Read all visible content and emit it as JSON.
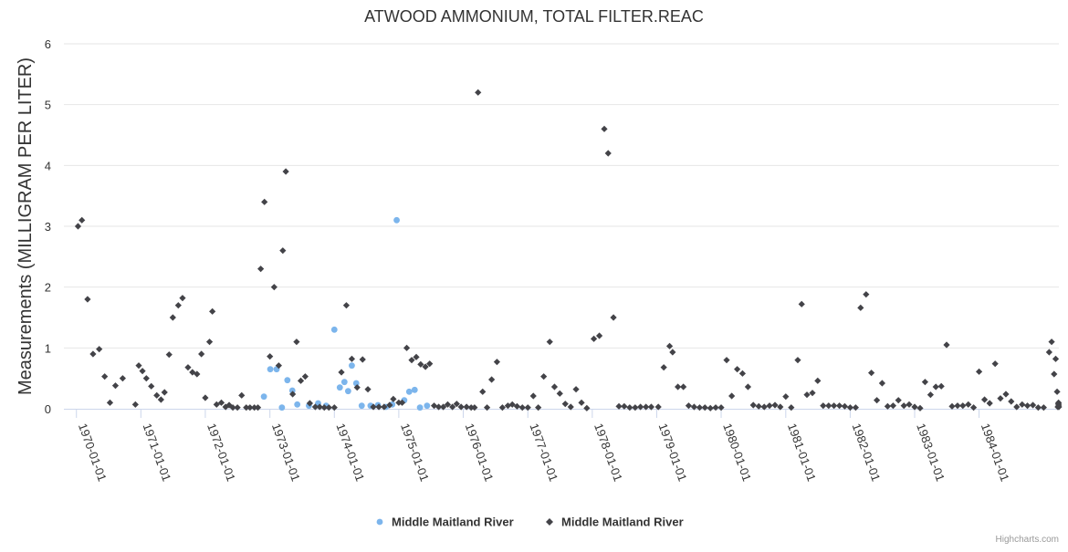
{
  "chart_data": {
    "type": "scatter",
    "title": "ATWOOD AMMONIUM, TOTAL FILTER.REAC",
    "xlabel": "",
    "ylabel": "Measurements (MILLIGRAM PER LITER)",
    "ylim": [
      0,
      6
    ],
    "y_ticks": [
      "0",
      "1",
      "2",
      "3",
      "4",
      "5",
      "6"
    ],
    "x_ticks": [
      "1970-01-01",
      "1971-01-01",
      "1972-01-01",
      "1973-01-01",
      "1974-01-01",
      "1975-01-01",
      "1976-01-01",
      "1977-01-01",
      "1978-01-01",
      "1979-01-01",
      "1980-01-01",
      "1981-01-01",
      "1982-01-01",
      "1983-01-01",
      "1984-01-01"
    ],
    "xlim": [
      "1969-10-22",
      "1985-03-28"
    ],
    "grid": true,
    "legend_position": "bottom-center",
    "credit": "Highcharts.com",
    "series": [
      {
        "name": "Middle Maitland River",
        "marker": "circle",
        "color": "#7cb5ec",
        "points": [
          [
            "1972-11-28",
            0.2
          ],
          [
            "1973-01-03",
            0.65
          ],
          [
            "1973-02-08",
            0.65
          ],
          [
            "1973-03-10",
            0.02
          ],
          [
            "1973-04-10",
            0.47
          ],
          [
            "1973-05-08",
            0.3
          ],
          [
            "1973-06-05",
            0.07
          ],
          [
            "1973-08-10",
            0.05
          ],
          [
            "1973-10-01",
            0.09
          ],
          [
            "1973-11-15",
            0.05
          ],
          [
            "1974-01-01",
            1.3
          ],
          [
            "1974-02-01",
            0.35
          ],
          [
            "1974-02-27",
            0.44
          ],
          [
            "1974-03-20",
            0.29
          ],
          [
            "1974-04-10",
            0.71
          ],
          [
            "1974-05-05",
            0.42
          ],
          [
            "1974-06-05",
            0.05
          ],
          [
            "1974-07-25",
            0.05
          ],
          [
            "1974-09-05",
            0.06
          ],
          [
            "1974-10-20",
            0.03
          ],
          [
            "1974-11-25",
            0.07
          ],
          [
            "1974-12-20",
            3.1
          ],
          [
            "1975-02-01",
            0.14
          ],
          [
            "1975-03-01",
            0.28
          ],
          [
            "1975-04-01",
            0.31
          ],
          [
            "1975-05-01",
            0.02
          ],
          [
            "1975-06-10",
            0.05
          ]
        ]
      },
      {
        "name": "Middle Maitland River",
        "marker": "diamond",
        "color": "#434348",
        "points": [
          [
            "1970-01-10",
            3.0
          ],
          [
            "1970-02-01",
            3.1
          ],
          [
            "1970-03-05",
            1.8
          ],
          [
            "1970-04-05",
            0.9
          ],
          [
            "1970-05-10",
            0.98
          ],
          [
            "1970-06-10",
            0.53
          ],
          [
            "1970-07-10",
            0.1
          ],
          [
            "1970-08-10",
            0.38
          ],
          [
            "1970-09-20",
            0.5
          ],
          [
            "1970-12-01",
            0.07
          ],
          [
            "1970-12-20",
            0.71
          ],
          [
            "1971-01-10",
            0.62
          ],
          [
            "1971-02-01",
            0.5
          ],
          [
            "1971-03-01",
            0.37
          ],
          [
            "1971-04-01",
            0.22
          ],
          [
            "1971-04-25",
            0.15
          ],
          [
            "1971-05-15",
            0.27
          ],
          [
            "1971-06-10",
            0.89
          ],
          [
            "1971-07-01",
            1.5
          ],
          [
            "1971-08-01",
            1.7
          ],
          [
            "1971-08-25",
            1.82
          ],
          [
            "1971-09-25",
            0.68
          ],
          [
            "1971-10-20",
            0.6
          ],
          [
            "1971-11-15",
            0.57
          ],
          [
            "1971-12-10",
            0.9
          ],
          [
            "1972-01-01",
            0.18
          ],
          [
            "1972-01-25",
            1.1
          ],
          [
            "1972-02-10",
            1.6
          ],
          [
            "1972-03-05",
            0.07
          ],
          [
            "1972-04-01",
            0.1
          ],
          [
            "1972-04-25",
            0.03
          ],
          [
            "1972-05-15",
            0.06
          ],
          [
            "1972-06-05",
            0.02
          ],
          [
            "1972-07-01",
            0.02
          ],
          [
            "1972-07-25",
            0.22
          ],
          [
            "1972-08-20",
            0.02
          ],
          [
            "1972-09-10",
            0.02
          ],
          [
            "1972-10-05",
            0.02
          ],
          [
            "1972-10-25",
            0.02
          ],
          [
            "1972-11-10",
            2.3
          ],
          [
            "1972-12-01",
            3.4
          ],
          [
            "1973-01-01",
            0.86
          ],
          [
            "1973-01-25",
            2.0
          ],
          [
            "1973-02-20",
            0.71
          ],
          [
            "1973-03-15",
            2.6
          ],
          [
            "1973-04-01",
            3.9
          ],
          [
            "1973-05-10",
            0.24
          ],
          [
            "1973-06-01",
            1.1
          ],
          [
            "1973-06-25",
            0.46
          ],
          [
            "1973-07-20",
            0.53
          ],
          [
            "1973-08-15",
            0.09
          ],
          [
            "1973-09-15",
            0.03
          ],
          [
            "1973-10-10",
            0.03
          ],
          [
            "1973-11-05",
            0.02
          ],
          [
            "1973-12-01",
            0.02
          ],
          [
            "1974-01-01",
            0.02
          ],
          [
            "1974-02-10",
            0.6
          ],
          [
            "1974-03-10",
            1.7
          ],
          [
            "1974-04-10",
            0.82
          ],
          [
            "1974-05-10",
            0.35
          ],
          [
            "1974-06-10",
            0.81
          ],
          [
            "1974-07-10",
            0.32
          ],
          [
            "1974-08-10",
            0.03
          ],
          [
            "1974-09-10",
            0.03
          ],
          [
            "1974-10-10",
            0.03
          ],
          [
            "1974-11-10",
            0.06
          ],
          [
            "1974-12-01",
            0.16
          ],
          [
            "1975-01-01",
            0.1
          ],
          [
            "1975-01-20",
            0.1
          ],
          [
            "1975-02-15",
            1.0
          ],
          [
            "1975-03-15",
            0.8
          ],
          [
            "1975-04-10",
            0.85
          ],
          [
            "1975-05-05",
            0.73
          ],
          [
            "1975-06-01",
            0.69
          ],
          [
            "1975-06-25",
            0.74
          ],
          [
            "1975-07-20",
            0.05
          ],
          [
            "1975-08-15",
            0.03
          ],
          [
            "1975-09-10",
            0.03
          ],
          [
            "1975-10-05",
            0.07
          ],
          [
            "1975-11-01",
            0.03
          ],
          [
            "1975-11-25",
            0.08
          ],
          [
            "1975-12-20",
            0.03
          ],
          [
            "1976-01-20",
            0.03
          ],
          [
            "1976-02-15",
            0.02
          ],
          [
            "1976-03-05",
            0.02
          ],
          [
            "1976-03-25",
            5.2
          ],
          [
            "1976-04-20",
            0.28
          ],
          [
            "1976-05-15",
            0.02
          ],
          [
            "1976-06-10",
            0.48
          ],
          [
            "1976-07-10",
            0.77
          ],
          [
            "1976-08-10",
            0.02
          ],
          [
            "1976-09-10",
            0.05
          ],
          [
            "1976-10-05",
            0.07
          ],
          [
            "1976-11-01",
            0.04
          ],
          [
            "1976-12-01",
            0.02
          ],
          [
            "1977-01-01",
            0.02
          ],
          [
            "1977-02-01",
            0.21
          ],
          [
            "1977-03-01",
            0.02
          ],
          [
            "1977-04-01",
            0.53
          ],
          [
            "1977-05-05",
            1.1
          ],
          [
            "1977-06-01",
            0.36
          ],
          [
            "1977-07-01",
            0.25
          ],
          [
            "1977-08-01",
            0.08
          ],
          [
            "1977-09-01",
            0.03
          ],
          [
            "1977-10-01",
            0.32
          ],
          [
            "1977-11-01",
            0.1
          ],
          [
            "1977-12-01",
            0.01
          ],
          [
            "1978-01-10",
            1.15
          ],
          [
            "1978-02-10",
            1.2
          ],
          [
            "1978-03-10",
            4.6
          ],
          [
            "1978-04-01",
            4.2
          ],
          [
            "1978-05-01",
            1.5
          ],
          [
            "1978-06-01",
            0.04
          ],
          [
            "1978-07-01",
            0.04
          ],
          [
            "1978-08-01",
            0.02
          ],
          [
            "1978-09-01",
            0.02
          ],
          [
            "1978-10-01",
            0.03
          ],
          [
            "1978-11-01",
            0.03
          ],
          [
            "1978-12-01",
            0.03
          ],
          [
            "1979-01-10",
            0.03
          ],
          [
            "1979-02-10",
            0.68
          ],
          [
            "1979-03-15",
            1.03
          ],
          [
            "1979-04-01",
            0.93
          ],
          [
            "1979-05-01",
            0.36
          ],
          [
            "1979-06-01",
            0.36
          ],
          [
            "1979-07-01",
            0.05
          ],
          [
            "1979-08-01",
            0.03
          ],
          [
            "1979-09-01",
            0.02
          ],
          [
            "1979-10-01",
            0.02
          ],
          [
            "1979-11-01",
            0.01
          ],
          [
            "1979-12-01",
            0.02
          ],
          [
            "1980-01-01",
            0.02
          ],
          [
            "1980-02-01",
            0.8
          ],
          [
            "1980-03-01",
            0.21
          ],
          [
            "1980-04-01",
            0.65
          ],
          [
            "1980-05-01",
            0.58
          ],
          [
            "1980-06-01",
            0.36
          ],
          [
            "1980-07-01",
            0.06
          ],
          [
            "1980-08-01",
            0.04
          ],
          [
            "1980-09-01",
            0.03
          ],
          [
            "1980-10-01",
            0.05
          ],
          [
            "1980-11-01",
            0.06
          ],
          [
            "1980-12-01",
            0.03
          ],
          [
            "1981-01-01",
            0.2
          ],
          [
            "1981-02-01",
            0.02
          ],
          [
            "1981-03-10",
            0.8
          ],
          [
            "1981-04-01",
            1.72
          ],
          [
            "1981-05-01",
            0.23
          ],
          [
            "1981-06-01",
            0.26
          ],
          [
            "1981-07-01",
            0.46
          ],
          [
            "1981-08-01",
            0.05
          ],
          [
            "1981-09-01",
            0.05
          ],
          [
            "1981-10-01",
            0.05
          ],
          [
            "1981-11-01",
            0.05
          ],
          [
            "1981-12-01",
            0.04
          ],
          [
            "1982-01-01",
            0.02
          ],
          [
            "1982-02-01",
            0.02
          ],
          [
            "1982-03-01",
            1.66
          ],
          [
            "1982-04-01",
            1.88
          ],
          [
            "1982-05-01",
            0.59
          ],
          [
            "1982-06-01",
            0.14
          ],
          [
            "1982-07-01",
            0.42
          ],
          [
            "1982-08-01",
            0.04
          ],
          [
            "1982-09-01",
            0.05
          ],
          [
            "1982-10-01",
            0.14
          ],
          [
            "1982-11-01",
            0.05
          ],
          [
            "1982-12-01",
            0.07
          ],
          [
            "1983-01-01",
            0.03
          ],
          [
            "1983-02-01",
            0.01
          ],
          [
            "1983-03-01",
            0.44
          ],
          [
            "1983-04-01",
            0.23
          ],
          [
            "1983-05-01",
            0.36
          ],
          [
            "1983-06-01",
            0.37
          ],
          [
            "1983-07-01",
            1.05
          ],
          [
            "1983-08-01",
            0.04
          ],
          [
            "1983-09-01",
            0.05
          ],
          [
            "1983-10-01",
            0.05
          ],
          [
            "1983-11-01",
            0.07
          ],
          [
            "1983-12-01",
            0.02
          ],
          [
            "1984-01-01",
            0.61
          ],
          [
            "1984-02-01",
            0.15
          ],
          [
            "1984-03-01",
            0.09
          ],
          [
            "1984-04-01",
            0.74
          ],
          [
            "1984-05-01",
            0.17
          ],
          [
            "1984-06-01",
            0.24
          ],
          [
            "1984-07-01",
            0.12
          ],
          [
            "1984-08-01",
            0.03
          ],
          [
            "1984-09-01",
            0.07
          ],
          [
            "1984-10-01",
            0.05
          ],
          [
            "1984-11-01",
            0.06
          ],
          [
            "1984-12-01",
            0.02
          ],
          [
            "1985-01-01",
            0.02
          ],
          [
            "1985-02-01",
            0.93
          ],
          [
            "1985-02-15",
            1.1
          ],
          [
            "1985-03-01",
            0.57
          ],
          [
            "1985-03-10",
            0.82
          ],
          [
            "1985-03-18",
            0.28
          ],
          [
            "1985-03-22",
            0.03
          ],
          [
            "1985-03-25",
            0.08
          ],
          [
            "1985-03-26",
            0.1
          ],
          [
            "1985-03-27",
            0.06
          ],
          [
            "1985-03-28",
            0.03
          ]
        ]
      }
    ]
  }
}
